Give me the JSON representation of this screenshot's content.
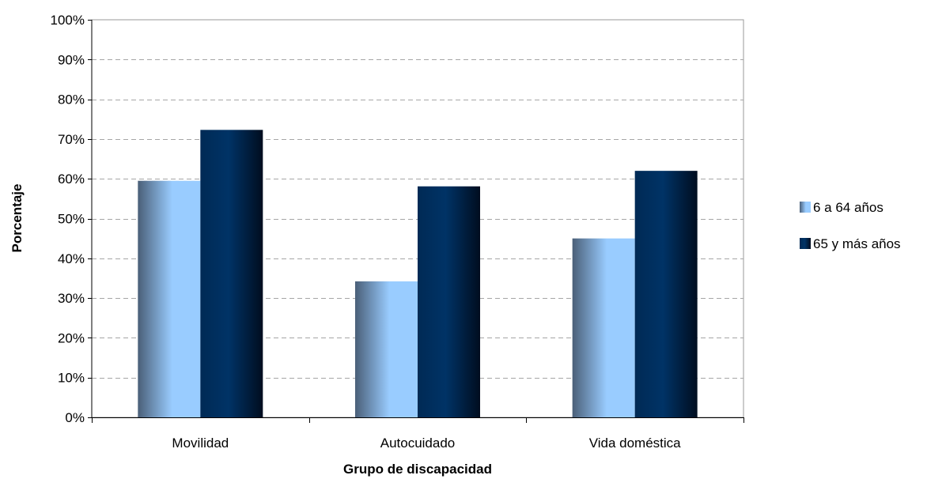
{
  "chart_data": {
    "type": "bar",
    "title": "",
    "xlabel": "Grupo de discapacidad",
    "ylabel": "Porcentaje",
    "categories": [
      "Movilidad",
      "Autocuidado",
      "Vida doméstica"
    ],
    "series": [
      {
        "name": "6 a 64 años",
        "values": [
          59.5,
          34.2,
          45.0
        ],
        "color": "#99ccff"
      },
      {
        "name": "65 y más años",
        "values": [
          72.3,
          58.1,
          62.0
        ],
        "color": "#003366"
      }
    ],
    "ylim": [
      0,
      100
    ],
    "yticks": [
      0,
      10,
      20,
      30,
      40,
      50,
      60,
      70,
      80,
      90,
      100
    ],
    "ytick_labels": [
      "0%",
      "10%",
      "20%",
      "30%",
      "40%",
      "50%",
      "60%",
      "70%",
      "80%",
      "90%",
      "100%"
    ],
    "grid": true,
    "legend_position": "right"
  }
}
